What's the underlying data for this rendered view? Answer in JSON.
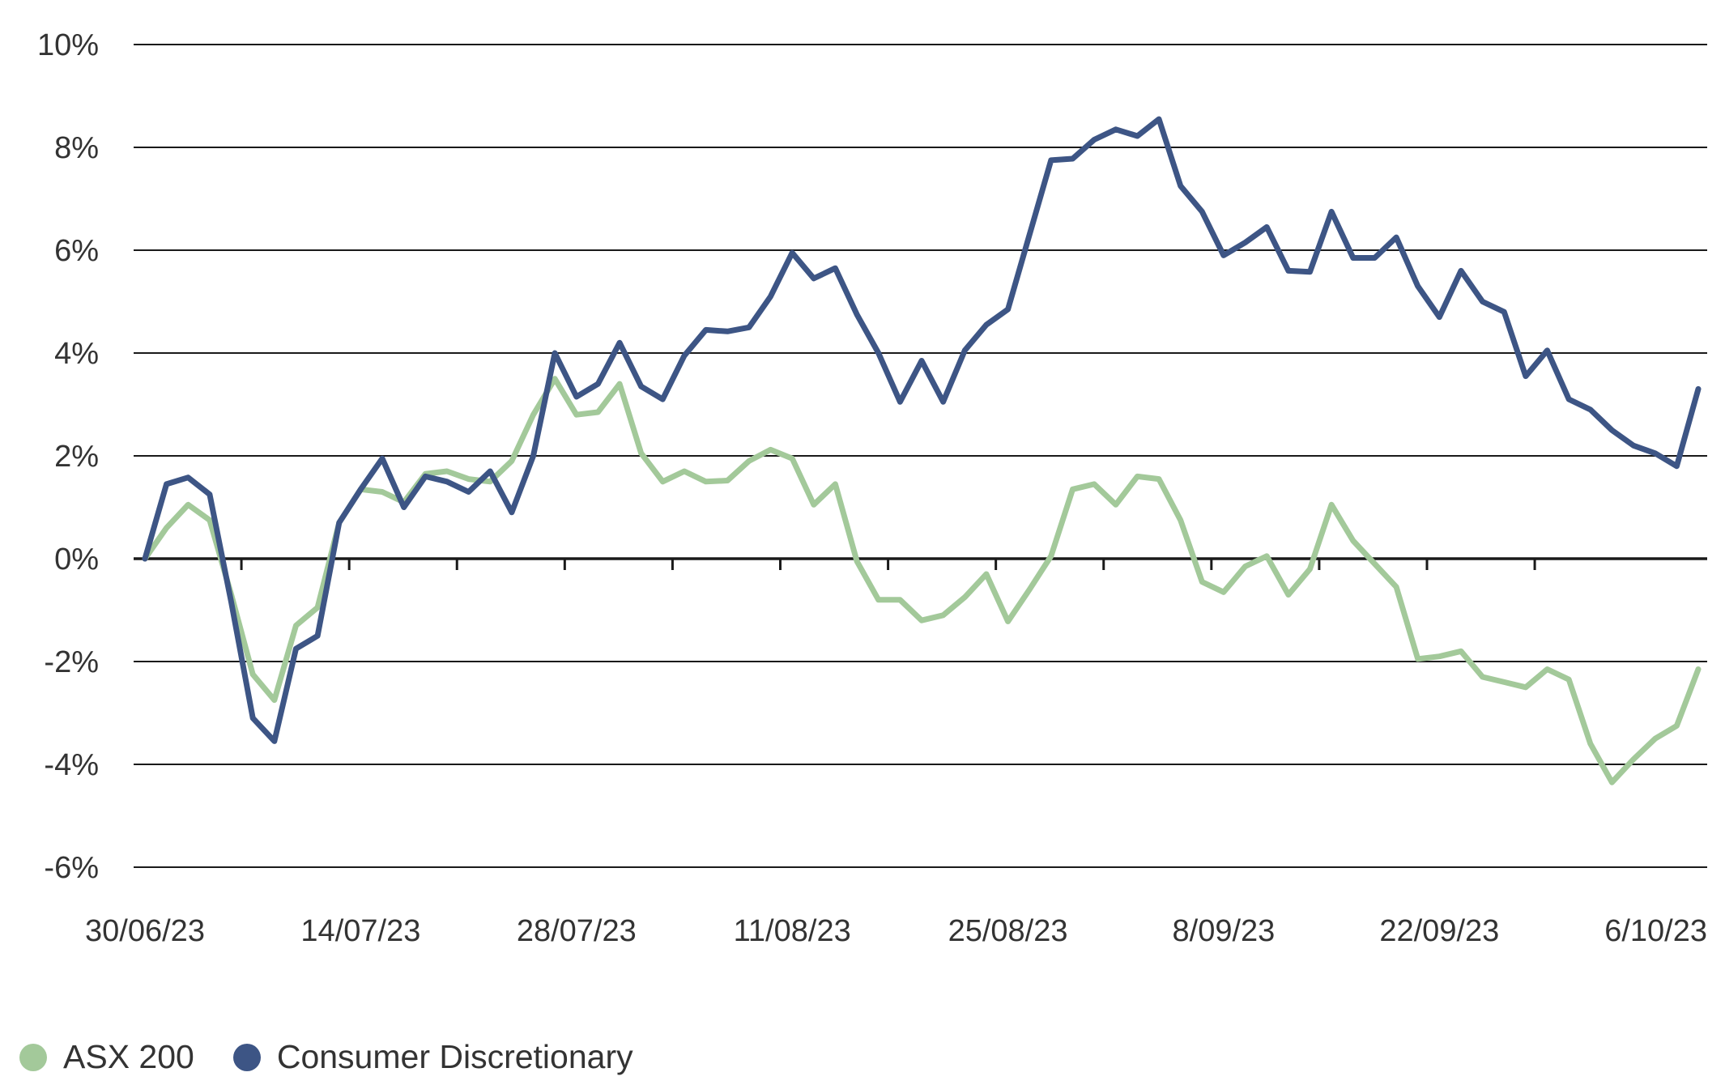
{
  "chart_data": {
    "type": "line",
    "title": "",
    "xlabel": "",
    "ylabel": "",
    "ylim": [
      -6,
      10
    ],
    "yticks": [
      10,
      8,
      6,
      4,
      2,
      0,
      -2,
      -4,
      -6
    ],
    "ytick_labels": [
      "10%",
      "8%",
      "6%",
      "4%",
      "2%",
      "0%",
      "-2%",
      "-4%",
      "-6%"
    ],
    "xtick_labels": [
      "30/06/23",
      "14/07/23",
      "28/07/23",
      "11/08/23",
      "25/08/23",
      "8/09/23",
      "22/09/23",
      "6/10/23"
    ],
    "xtick_positions": [
      0,
      10,
      20,
      30,
      40,
      50,
      60,
      70
    ],
    "x_max": 72,
    "grid": true,
    "legend_position": "bottom-left",
    "series": [
      {
        "name": "ASX 200",
        "color": "#a3c99a",
        "values": [
          0,
          0.6,
          1.05,
          0.75,
          -0.7,
          -2.25,
          -2.75,
          -1.3,
          -0.95,
          0.7,
          1.35,
          1.3,
          1.1,
          1.65,
          1.7,
          1.55,
          1.5,
          1.9,
          2.8,
          3.5,
          2.8,
          2.85,
          3.4,
          2.05,
          1.5,
          1.7,
          1.5,
          1.52,
          1.9,
          2.12,
          1.95,
          1.05,
          1.45,
          -0.05,
          -0.8,
          -0.8,
          -1.2,
          -1.1,
          -0.75,
          -0.3,
          -1.22,
          -0.6,
          0.05,
          1.35,
          1.45,
          1.05,
          1.6,
          1.55,
          0.75,
          -0.45,
          -0.65,
          -0.15,
          0.05,
          -0.7,
          -0.2,
          1.05,
          0.35,
          -0.1,
          -0.55,
          -1.95,
          -1.9,
          -1.8,
          -2.3,
          -2.4,
          -2.5,
          -2.15,
          -2.35,
          -3.6,
          -4.35,
          -3.9,
          -3.5,
          -3.25,
          -2.15
        ]
      },
      {
        "name": "Consumer Discretionary",
        "color": "#3d5585",
        "values": [
          0,
          1.45,
          1.58,
          1.25,
          -0.85,
          -3.1,
          -3.55,
          -1.75,
          -1.5,
          0.7,
          1.35,
          1.95,
          1.0,
          1.6,
          1.5,
          1.3,
          1.7,
          0.9,
          2.0,
          4.0,
          3.15,
          3.4,
          4.2,
          3.35,
          3.1,
          3.95,
          4.45,
          4.42,
          4.5,
          5.1,
          5.95,
          5.45,
          5.65,
          4.75,
          4.0,
          3.05,
          3.85,
          3.05,
          4.05,
          4.55,
          4.85,
          6.3,
          7.75,
          7.78,
          8.15,
          8.35,
          8.22,
          8.55,
          7.25,
          6.75,
          5.9,
          6.15,
          6.45,
          5.6,
          5.58,
          6.75,
          5.85,
          5.85,
          6.25,
          5.3,
          4.7,
          5.6,
          5.0,
          4.8,
          3.55,
          4.05,
          3.1,
          2.9,
          2.5,
          2.2,
          2.05,
          1.8,
          3.3
        ]
      }
    ]
  }
}
